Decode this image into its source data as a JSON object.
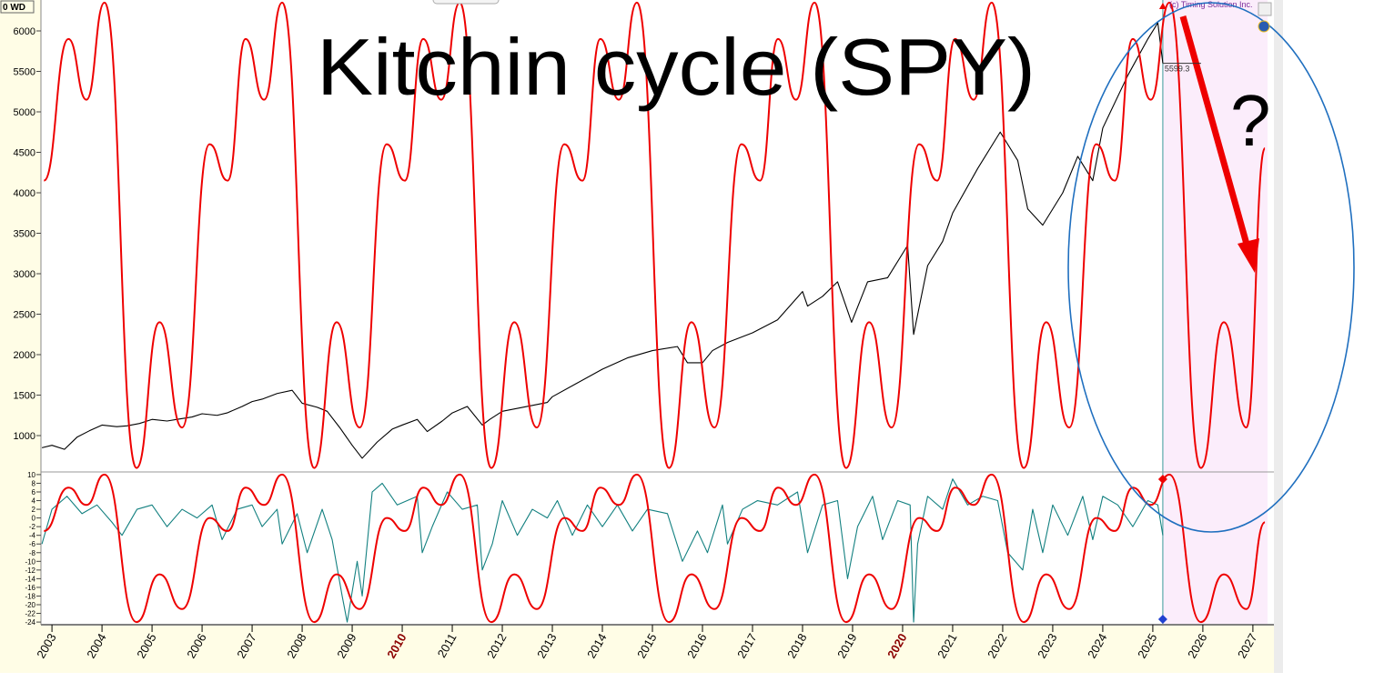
{
  "chart_data": [
    {
      "type": "line",
      "title": "Kitchin cycle (SPY)",
      "corner_label": "0 WD",
      "copyright": "(c) Timing Solution Inc.",
      "annotation": "?",
      "marker": {
        "value": 5599.3,
        "label": "5599.3"
      },
      "xlim": [
        2002.78,
        2027.42
      ],
      "ylim": [
        562,
        6382
      ],
      "yticks": [
        1000,
        1500,
        2000,
        2500,
        3000,
        3500,
        4000,
        4500,
        5000,
        5500,
        6000
      ],
      "series": [
        {
          "color": "#000000",
          "smooth": false,
          "x": [
            2002.8,
            2003.0,
            2003.25,
            2003.5,
            2003.75,
            2004.0,
            2004.3,
            2004.5,
            2004.75,
            2005.0,
            2005.3,
            2005.5,
            2005.8,
            2006.0,
            2006.3,
            2006.5,
            2006.8,
            2007.0,
            2007.2,
            2007.5,
            2007.8,
            2008.0,
            2008.3,
            2008.5,
            2008.75,
            2009.0,
            2009.2,
            2009.5,
            2009.8,
            2010.0,
            2010.3,
            2010.5,
            2010.8,
            2011.0,
            2011.3,
            2011.6,
            2011.75,
            2012.0,
            2012.5,
            2012.9,
            2013.0,
            2013.5,
            2014.0,
            2014.5,
            2015.0,
            2015.5,
            2015.7,
            2016.0,
            2016.2,
            2016.5,
            2017.0,
            2017.5,
            2018.0,
            2018.1,
            2018.4,
            2018.7,
            2018.98,
            2019.3,
            2019.7,
            2020.1,
            2020.22,
            2020.5,
            2020.8,
            2021.0,
            2021.5,
            2021.95,
            2022.3,
            2022.5,
            2022.8,
            2023.2,
            2023.5,
            2023.8,
            2024.0,
            2024.5,
            2024.9,
            2025.1,
            2025.2
          ],
          "values": [
            850,
            880,
            830,
            980,
            1060,
            1130,
            1110,
            1120,
            1150,
            1200,
            1180,
            1200,
            1230,
            1270,
            1250,
            1280,
            1360,
            1420,
            1450,
            1520,
            1560,
            1400,
            1350,
            1300,
            1100,
            880,
            720,
            920,
            1080,
            1130,
            1200,
            1050,
            1180,
            1280,
            1360,
            1130,
            1200,
            1300,
            1360,
            1410,
            1480,
            1650,
            1820,
            1960,
            2050,
            2100,
            1900,
            1900,
            2050,
            2150,
            2270,
            2430,
            2780,
            2600,
            2720,
            2900,
            2400,
            2900,
            2950,
            3350,
            2250,
            3100,
            3400,
            3750,
            4300,
            4750,
            4400,
            3800,
            3600,
            4000,
            4450,
            4150,
            4800,
            5450,
            5900,
            6100,
            5600
          ]
        },
        {
          "color": "#ee0000",
          "smooth": true,
          "x": [
            2002.84,
            2003.33,
            2003.69,
            2004.05,
            2004.69,
            2005.15,
            2005.6,
            2006.15,
            2006.51,
            2006.87,
            2007.24,
            2007.6,
            2008.24,
            2008.69,
            2009.15,
            2009.69,
            2010.05,
            2010.42,
            2010.78,
            2011.15,
            2011.78,
            2012.24,
            2012.69,
            2013.24,
            2013.6,
            2013.96,
            2014.33,
            2014.69,
            2015.33,
            2015.78,
            2016.24,
            2016.78,
            2017.15,
            2017.51,
            2017.87,
            2018.24,
            2018.87,
            2019.33,
            2019.78,
            2020.33,
            2020.69,
            2021.05,
            2021.42,
            2021.78,
            2022.42,
            2022.87,
            2023.33,
            2023.87,
            2024.24,
            2024.6,
            2024.96,
            2025.33,
            2025.96,
            2026.42,
            2026.87,
            2027.24
          ],
          "values": [
            4150,
            5900,
            5150,
            6350,
            600,
            2400,
            1100,
            4600,
            4150,
            5900,
            5150,
            6350,
            600,
            2400,
            1100,
            4600,
            4150,
            5900,
            5150,
            6350,
            600,
            2400,
            1100,
            4600,
            4150,
            5900,
            5150,
            6350,
            600,
            2400,
            1100,
            4600,
            4150,
            5900,
            5150,
            6350,
            600,
            2400,
            1100,
            4600,
            4150,
            5900,
            5150,
            6350,
            600,
            2400,
            1100,
            4600,
            4150,
            5900,
            5150,
            6350,
            600,
            2400,
            1100,
            4550
          ]
        }
      ]
    },
    {
      "type": "line",
      "xlim": [
        2002.78,
        2027.42
      ],
      "ylim": [
        -24.4,
        10.4
      ],
      "yticks": [
        10,
        8,
        6,
        4,
        2,
        0,
        -2,
        -4,
        -6,
        -8,
        -10,
        -12,
        -14,
        -16,
        -18,
        -20,
        -22,
        -24
      ],
      "xticks": [
        2003,
        2004,
        2005,
        2006,
        2007,
        2008,
        2009,
        2010,
        2011,
        2012,
        2013,
        2014,
        2015,
        2016,
        2017,
        2018,
        2019,
        2020,
        2021,
        2022,
        2023,
        2024,
        2025,
        2026,
        2027
      ],
      "series": [
        {
          "color": "#138080",
          "smooth": false,
          "x": [
            2002.8,
            2003.0,
            2003.3,
            2003.6,
            2003.9,
            2004.2,
            2004.4,
            2004.7,
            2005.0,
            2005.3,
            2005.6,
            2005.9,
            2006.2,
            2006.4,
            2006.7,
            2007.0,
            2007.2,
            2007.5,
            2007.6,
            2007.9,
            2008.1,
            2008.4,
            2008.6,
            2008.8,
            2008.9,
            2009.1,
            2009.2,
            2009.4,
            2009.6,
            2009.9,
            2010.3,
            2010.4,
            2010.6,
            2010.9,
            2011.2,
            2011.5,
            2011.6,
            2011.8,
            2012.0,
            2012.3,
            2012.6,
            2012.9,
            2013.1,
            2013.4,
            2013.7,
            2014.0,
            2014.3,
            2014.6,
            2014.9,
            2015.3,
            2015.6,
            2015.9,
            2016.1,
            2016.4,
            2016.5,
            2016.8,
            2017.1,
            2017.5,
            2017.9,
            2018.1,
            2018.4,
            2018.7,
            2018.9,
            2019.1,
            2019.4,
            2019.6,
            2019.9,
            2020.15,
            2020.22,
            2020.3,
            2020.5,
            2020.8,
            2021.0,
            2021.3,
            2021.6,
            2021.9,
            2022.1,
            2022.4,
            2022.6,
            2022.8,
            2023.0,
            2023.3,
            2023.6,
            2023.8,
            2024.0,
            2024.3,
            2024.6,
            2024.9,
            2025.1,
            2025.2
          ],
          "values": [
            -6,
            2,
            5,
            1,
            3,
            -1,
            -4,
            2,
            3,
            -2,
            2,
            0,
            3,
            -5,
            2,
            3,
            -2,
            2,
            -6,
            1,
            -8,
            2,
            -5,
            -18,
            -24,
            -10,
            -18,
            6,
            8,
            3,
            5,
            -8,
            -2,
            6,
            2,
            3,
            -12,
            -6,
            4,
            -4,
            2,
            0,
            4,
            -4,
            3,
            -2,
            3,
            -3,
            2,
            1,
            -10,
            -3,
            -8,
            3,
            -6,
            2,
            4,
            3,
            6,
            -8,
            3,
            4,
            -14,
            -2,
            5,
            -5,
            4,
            3,
            -24,
            -6,
            5,
            2,
            9,
            3,
            5,
            4,
            -8,
            -12,
            2,
            -8,
            3,
            -4,
            5,
            -5,
            5,
            3,
            -2,
            4,
            3,
            -4
          ]
        },
        {
          "color": "#ee0000",
          "smooth": true,
          "x": [
            2002.84,
            2003.33,
            2003.69,
            2004.05,
            2004.69,
            2005.15,
            2005.6,
            2006.15,
            2006.51,
            2006.87,
            2007.24,
            2007.6,
            2008.24,
            2008.69,
            2009.15,
            2009.69,
            2010.05,
            2010.42,
            2010.78,
            2011.15,
            2011.78,
            2012.24,
            2012.69,
            2013.24,
            2013.6,
            2013.96,
            2014.33,
            2014.69,
            2015.33,
            2015.78,
            2016.24,
            2016.78,
            2017.15,
            2017.51,
            2017.87,
            2018.24,
            2018.87,
            2019.33,
            2019.78,
            2020.33,
            2020.69,
            2021.05,
            2021.42,
            2021.78,
            2022.42,
            2022.87,
            2023.33,
            2023.87,
            2024.24,
            2024.6,
            2024.96,
            2025.33,
            2025.96,
            2026.42,
            2026.87,
            2027.24
          ],
          "values": [
            -3,
            7,
            3,
            10,
            -24,
            -13,
            -21,
            0,
            -3,
            7,
            3,
            10,
            -24,
            -13,
            -21,
            0,
            -3,
            7,
            3,
            10,
            -24,
            -13,
            -21,
            0,
            -3,
            7,
            3,
            10,
            -24,
            -13,
            -21,
            0,
            -3,
            7,
            3,
            10,
            -24,
            -13,
            -21,
            0,
            -3,
            7,
            3,
            10,
            -24,
            -13,
            -21,
            0,
            -3,
            7,
            3,
            10,
            -24,
            -13,
            -21,
            -1
          ]
        }
      ]
    }
  ]
}
